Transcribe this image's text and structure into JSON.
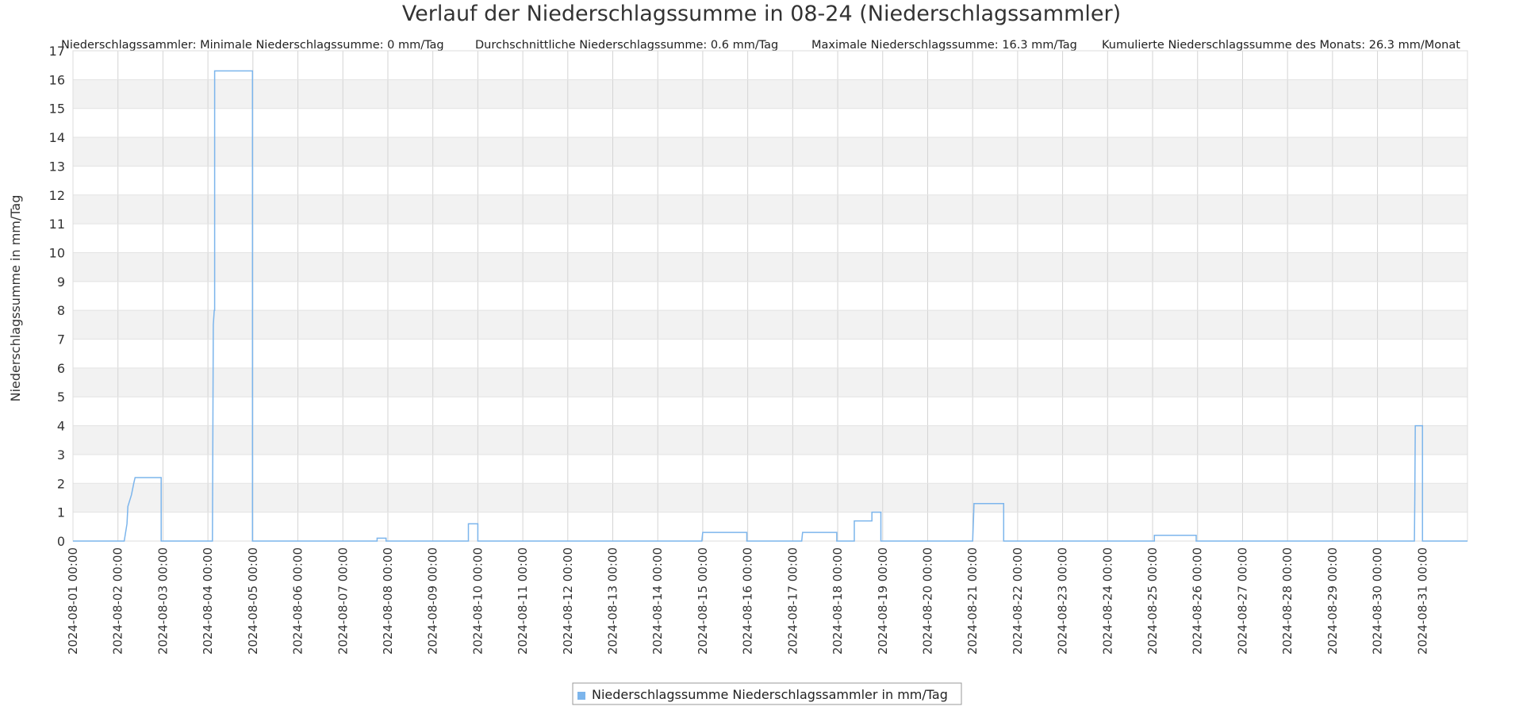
{
  "chart_data": {
    "type": "line",
    "title": "Verlauf der Niederschlagssumme in 08-24 (Niederschlagssammler)",
    "stats": [
      "Niederschlagssammler: Minimale Niederschlagssumme: 0 mm/Tag",
      "Durchschnittliche Niederschlagssumme: 0.6 mm/Tag",
      "Maximale Niederschlagssumme: 16.3 mm/Tag",
      "Kumulierte Niederschlagssumme des Monats: 26.3 mm/Monat"
    ],
    "ylabel": "Niederschlagssumme in mm/Tag",
    "xlabel": "",
    "ylim": [
      0,
      17
    ],
    "xlim": [
      1,
      32
    ],
    "yticks": [
      0,
      1,
      2,
      3,
      4,
      5,
      6,
      7,
      8,
      9,
      10,
      11,
      12,
      13,
      14,
      15,
      16,
      17
    ],
    "xtick_labels": [
      "2024-08-01 00:00",
      "2024-08-02 00:00",
      "2024-08-03 00:00",
      "2024-08-04 00:00",
      "2024-08-05 00:00",
      "2024-08-06 00:00",
      "2024-08-07 00:00",
      "2024-08-08 00:00",
      "2024-08-09 00:00",
      "2024-08-10 00:00",
      "2024-08-11 00:00",
      "2024-08-12 00:00",
      "2024-08-13 00:00",
      "2024-08-14 00:00",
      "2024-08-15 00:00",
      "2024-08-16 00:00",
      "2024-08-17 00:00",
      "2024-08-18 00:00",
      "2024-08-19 00:00",
      "2024-08-20 00:00",
      "2024-08-21 00:00",
      "2024-08-22 00:00",
      "2024-08-23 00:00",
      "2024-08-24 00:00",
      "2024-08-25 00:00",
      "2024-08-26 00:00",
      "2024-08-27 00:00",
      "2024-08-28 00:00",
      "2024-08-29 00:00",
      "2024-08-30 00:00",
      "2024-08-31 00:00"
    ],
    "grid": true,
    "legend_position": "bottom-center",
    "series": [
      {
        "name": "Niederschlagssumme Niederschlagssammler in mm/Tag",
        "color": "#7cb5ec",
        "x": [
          1.0,
          2.14,
          2.2,
          2.22,
          2.3,
          2.35,
          2.38,
          2.96,
          2.96,
          4.1,
          4.12,
          4.14,
          4.15,
          4.15,
          4.16,
          4.99,
          4.99,
          7.76,
          7.76,
          7.96,
          7.96,
          9.79,
          9.79,
          10.0,
          10.0,
          14.98,
          15.0,
          15.02,
          15.98,
          15.98,
          17.2,
          17.22,
          17.98,
          17.98,
          18.37,
          18.37,
          18.76,
          18.76,
          18.96,
          18.96,
          21.0,
          21.02,
          21.03,
          21.05,
          21.69,
          21.69,
          25.04,
          25.04,
          25.97,
          25.97,
          30.82,
          30.83,
          30.84,
          31.0,
          31.0,
          32.0
        ],
        "y": [
          0,
          0,
          0.6,
          1.2,
          1.6,
          2.0,
          2.2,
          2.2,
          0,
          0,
          7.5,
          8.0,
          8.0,
          16.3,
          16.3,
          16.3,
          0,
          0,
          0.1,
          0.1,
          0,
          0,
          0.6,
          0.6,
          0,
          0,
          0.3,
          0.3,
          0.3,
          0,
          0,
          0.3,
          0.3,
          0,
          0,
          0.7,
          0.7,
          1.0,
          1.0,
          0,
          0,
          0.8,
          1.3,
          1.3,
          1.3,
          0,
          0,
          0.2,
          0.2,
          0,
          0,
          1.5,
          4.0,
          4.0,
          0,
          0
        ]
      }
    ]
  }
}
